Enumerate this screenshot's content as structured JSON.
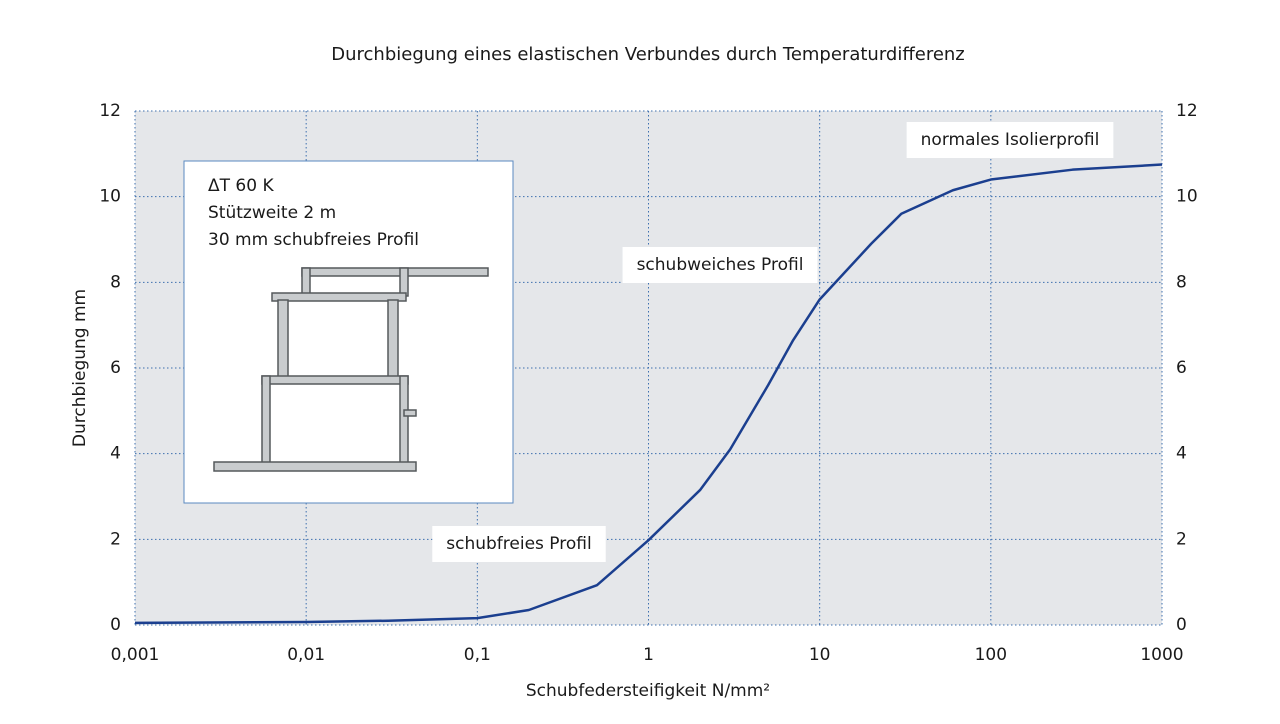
{
  "chart_data": {
    "type": "line",
    "title": "Durchbiegung eines elastischen Verbundes durch Temperaturdifferenz",
    "x_label": "Schubfedersteifigkeit N/mm²",
    "y_label": "Durchbiegung mm",
    "x": [
      0.001,
      0.01,
      0.03,
      0.1,
      0.2,
      0.5,
      1,
      2,
      3,
      5,
      7,
      10,
      20,
      30,
      60,
      100,
      300,
      1000
    ],
    "values": [
      0.05,
      0.07,
      0.1,
      0.16,
      0.35,
      0.93,
      1.98,
      3.15,
      4.1,
      5.6,
      6.65,
      7.6,
      8.9,
      9.6,
      10.15,
      10.4,
      10.63,
      10.75
    ],
    "color": "#1b3f8f",
    "log_x": true,
    "grid": true,
    "xlim": [
      0.001,
      1000
    ],
    "xticks": [
      {
        "value": 0.001,
        "label": "0,001"
      },
      {
        "value": 0.01,
        "label": "0,01"
      },
      {
        "value": 0.1,
        "label": "0,1"
      },
      1,
      10,
      100,
      1000
    ],
    "ylim": [
      0,
      12
    ],
    "yticks": [
      0,
      2,
      4,
      6,
      8,
      10,
      12
    ],
    "y2lim": [
      0,
      12
    ],
    "y2ticks": [
      0,
      2,
      4,
      6,
      8,
      10,
      12
    ],
    "annotations": [
      "normales Isolierprofil",
      "schubweiches Profil",
      "schubfreies Profil"
    ],
    "inset": [
      "ΔT 60 K",
      "Stützweite 2 m",
      "30 mm schubfreies Profil"
    ]
  }
}
